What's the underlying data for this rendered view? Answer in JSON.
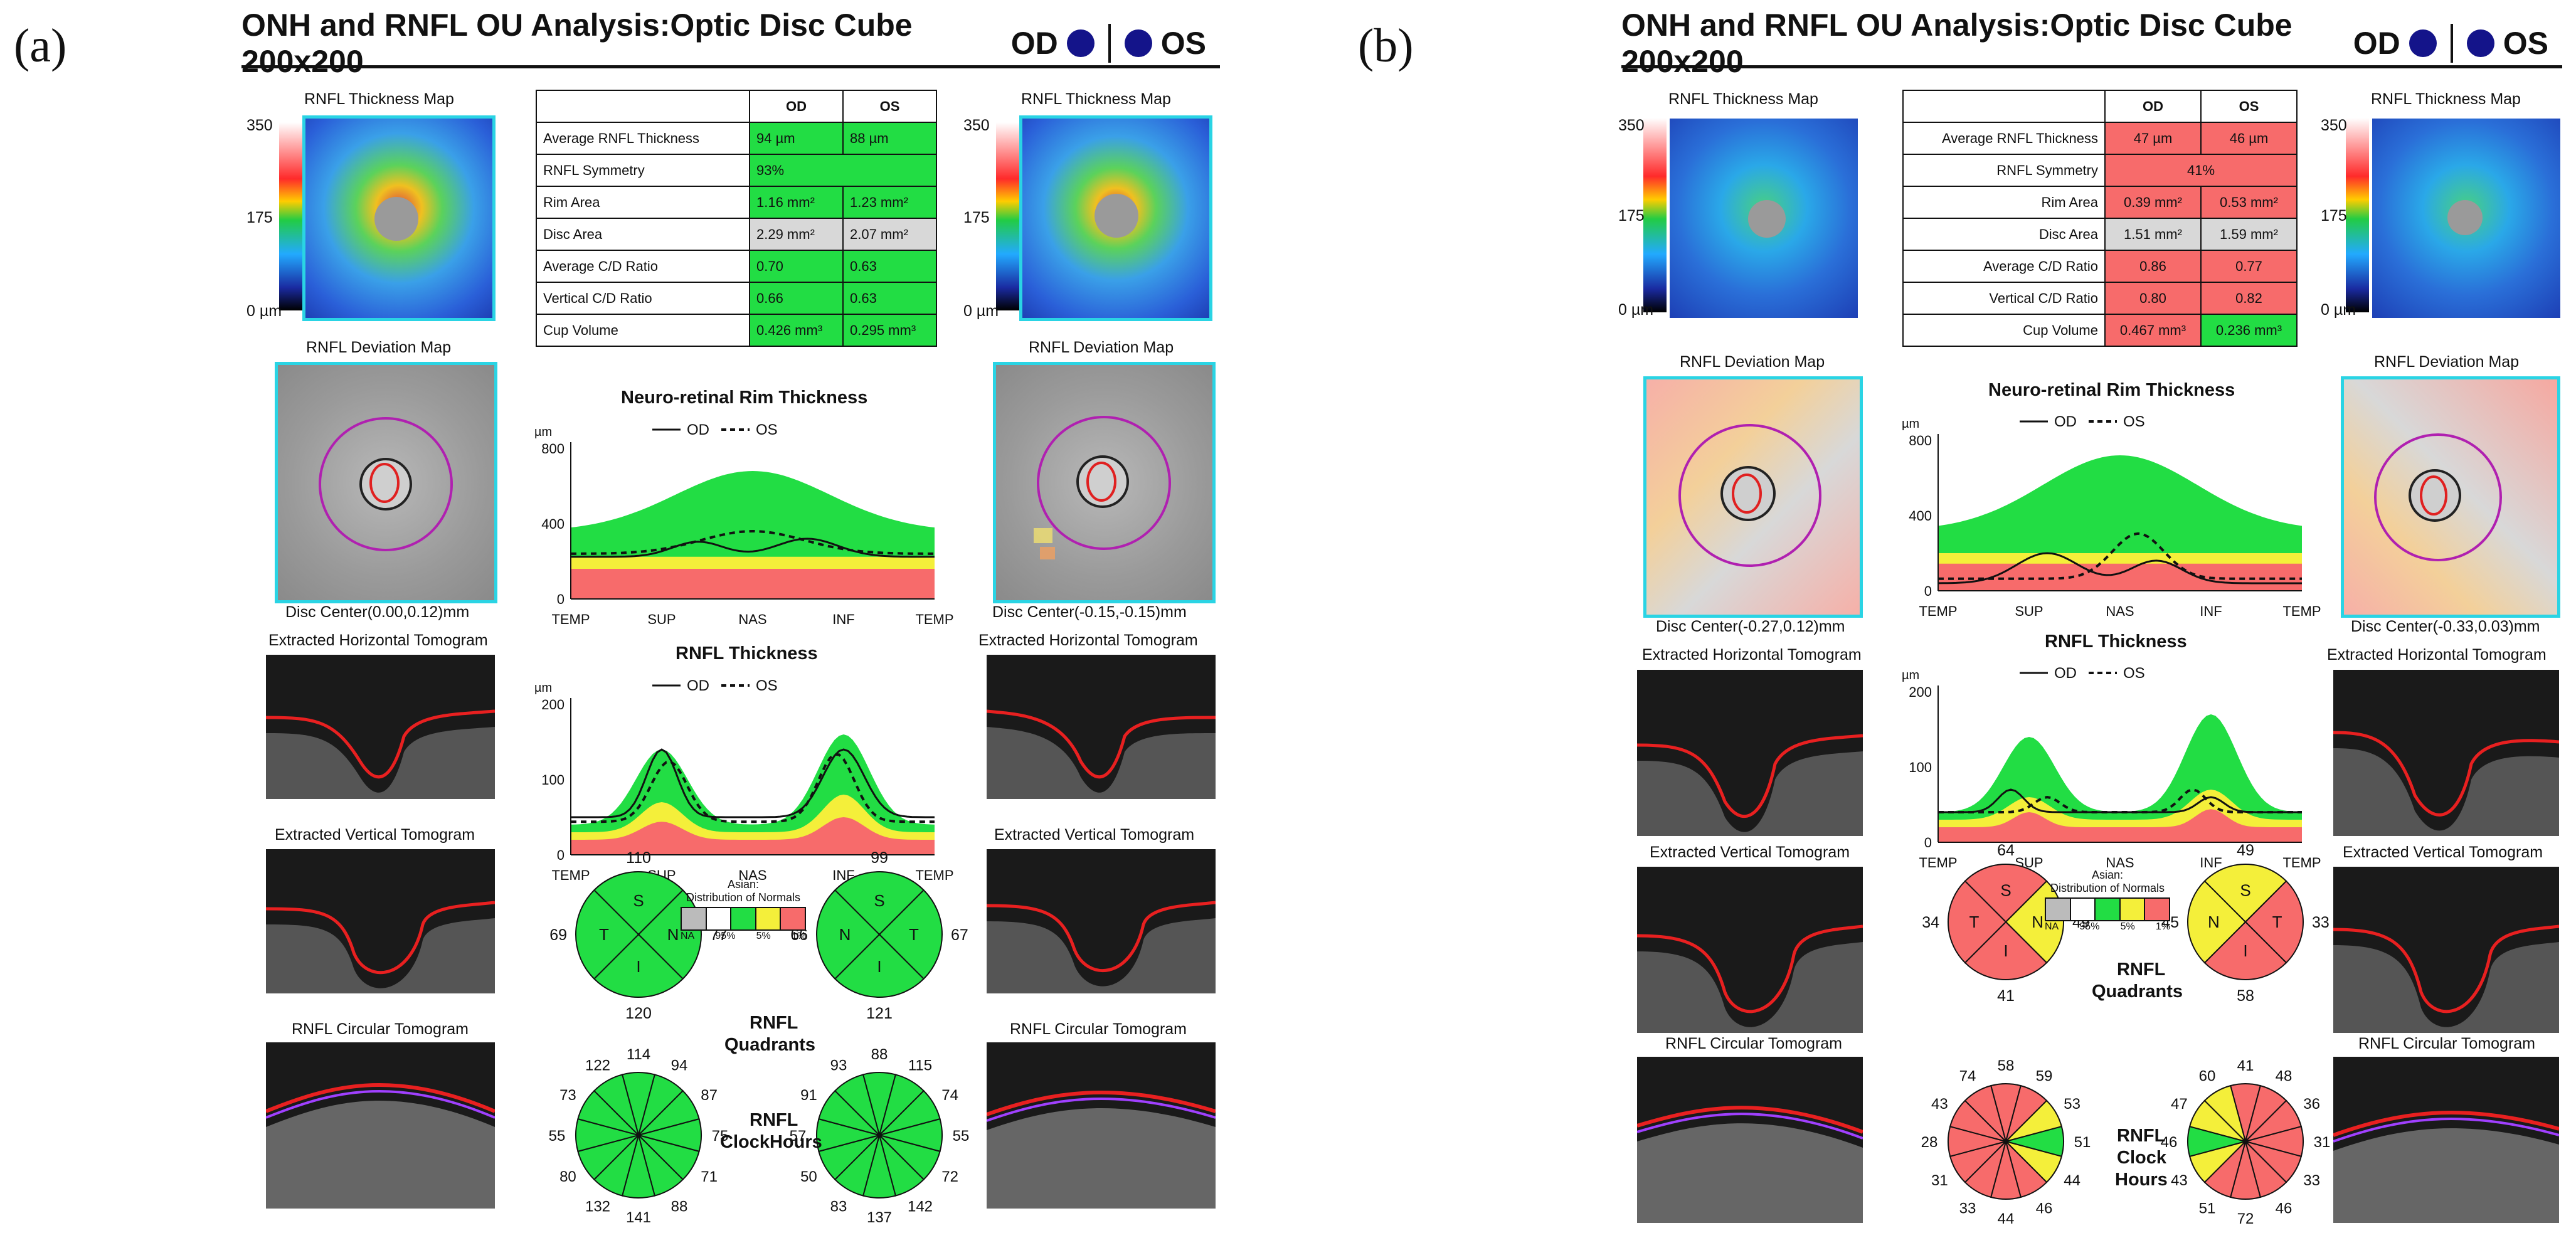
{
  "figure_labels": [
    "(a)",
    "(b)"
  ],
  "header": {
    "title": "ONH and RNFL OU Analysis:Optic Disc Cube 200x200",
    "od": "OD",
    "os": "OS"
  },
  "captions": {
    "thickness_map": "RNFL Thickness Map",
    "deviation_map": "RNFL Deviation Map",
    "horizontal_tomo": "Extracted Horizontal Tomogram",
    "vertical_tomo": "Extracted Vertical Tomogram",
    "circular_tomo": "RNFL Circular Tomogram",
    "rim_title": "Neuro-retinal Rim Thickness",
    "rnfl_title": "RNFL Thickness",
    "legend_od": "OD",
    "legend_os": "OS",
    "unit": "µm",
    "quadrants_line1": "RNFL",
    "quadrants_line2": "Quadrants",
    "clock_line1": "RNFL",
    "clock_line2": "ClockHours",
    "clock_b_line2": "Clock",
    "clock_b_line3": "Hours",
    "normals_line1": "Asian:",
    "normals_line2": "Distribution of Normals",
    "normals_ticks": [
      "NA",
      "95%",
      "5%",
      "1%"
    ]
  },
  "scale_ticks": [
    "350",
    "175",
    "0 µm"
  ],
  "table_header": [
    "OD",
    "OS"
  ],
  "table_rows": [
    "Average RNFL Thickness",
    "RNFL Symmetry",
    "Rim Area",
    "Disc Area",
    "Average C/D Ratio",
    "Vertical C/D Ratio",
    "Cup Volume"
  ],
  "axis_x": [
    "TEMP",
    "SUP",
    "NAS",
    "INF",
    "TEMP"
  ],
  "rim_y": [
    "800",
    "400",
    "0"
  ],
  "rnfl_y": [
    "200",
    "100",
    "0"
  ],
  "panel_a": {
    "table": {
      "od": [
        "94 µm",
        "",
        "1.16 mm²",
        "2.29 mm²",
        "0.70",
        "0.66",
        "0.426 mm³"
      ],
      "os": [
        "88 µm",
        "",
        "1.23 mm²",
        "2.07 mm²",
        "0.63",
        "0.63",
        "0.295 mm³"
      ],
      "symmetry": "93%"
    },
    "disc_center_od": "Disc Center(0.00,0.12)mm",
    "disc_center_os": "Disc Center(-0.15,-0.15)mm",
    "quadrants_od": {
      "top": "110",
      "left": "69",
      "right": "77",
      "bottom": "120"
    },
    "quadrants_os": {
      "top": "99",
      "left": "66",
      "right": "67",
      "bottom": "121"
    },
    "clock_od": [
      "114",
      "94",
      "87",
      "75",
      "71",
      "88",
      "141",
      "132",
      "80",
      "55",
      "73",
      "122"
    ],
    "clock_os": [
      "88",
      "115",
      "74",
      "55",
      "72",
      "142",
      "137",
      "83",
      "50",
      "57",
      "91",
      "93"
    ]
  },
  "panel_b": {
    "table": {
      "od": [
        "47 µm",
        "",
        "0.39 mm²",
        "1.51 mm²",
        "0.86",
        "0.80",
        "0.467 mm³"
      ],
      "os": [
        "46 µm",
        "",
        "0.53 mm²",
        "1.59 mm²",
        "0.77",
        "0.82",
        "0.236 mm³"
      ],
      "symmetry": "41%"
    },
    "disc_center_od": "Disc Center(-0.27,0.12)mm",
    "disc_center_os": "Disc Center(-0.33,0.03)mm",
    "quadrants_od": {
      "top": "64",
      "left": "34",
      "right": "49",
      "bottom": "41"
    },
    "quadrants_os": {
      "top": "49",
      "left": "45",
      "right": "33",
      "bottom": "58"
    },
    "clock_od": [
      "58",
      "59",
      "53",
      "51",
      "44",
      "46",
      "44",
      "33",
      "31",
      "28",
      "43",
      "74"
    ],
    "clock_os": [
      "41",
      "48",
      "36",
      "31",
      "33",
      "46",
      "72",
      "51",
      "43",
      "46",
      "47",
      "60"
    ]
  },
  "colors": {
    "green": "#22dd44",
    "red": "#f76b6b",
    "yellow": "#f4ef3a",
    "cyan": "#2ad4e4",
    "navy": "#14148a"
  }
}
